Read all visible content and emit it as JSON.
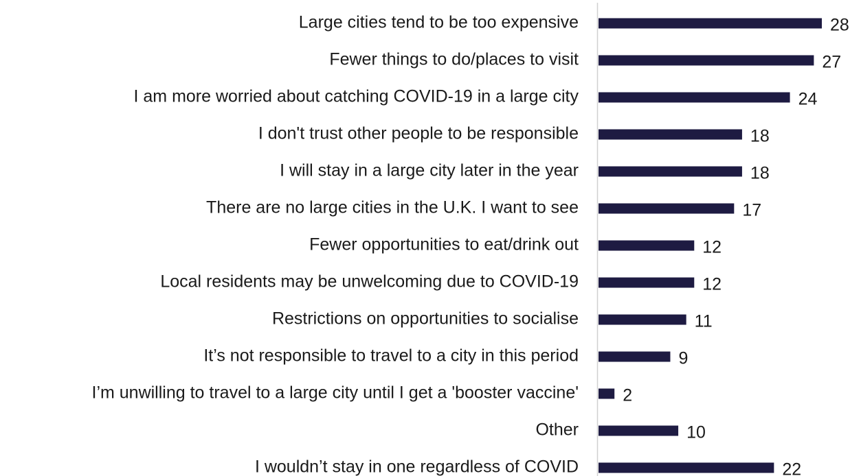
{
  "chart_data": {
    "type": "bar",
    "orientation": "horizontal",
    "categories": [
      "Large cities tend to be too expensive",
      "Fewer things to do/places to visit",
      "I am more worried about catching COVID-19 in a large city",
      "I don't trust other people to be responsible",
      "I will stay in a large city later in the year",
      "There are no large cities in the U.K. I want to see",
      "Fewer opportunities to eat/drink out",
      "Local residents may be unwelcoming due to COVID-19",
      "Restrictions on opportunities to socialise",
      "It’s not responsible to travel to a city in this period",
      "I’m unwilling to travel to a large city until I get a 'booster vaccine'",
      "Other",
      "I wouldn’t stay in one regardless of COVID"
    ],
    "values": [
      28,
      27,
      24,
      18,
      18,
      17,
      12,
      12,
      11,
      9,
      2,
      10,
      22
    ],
    "color": "#1e1b42"
  }
}
